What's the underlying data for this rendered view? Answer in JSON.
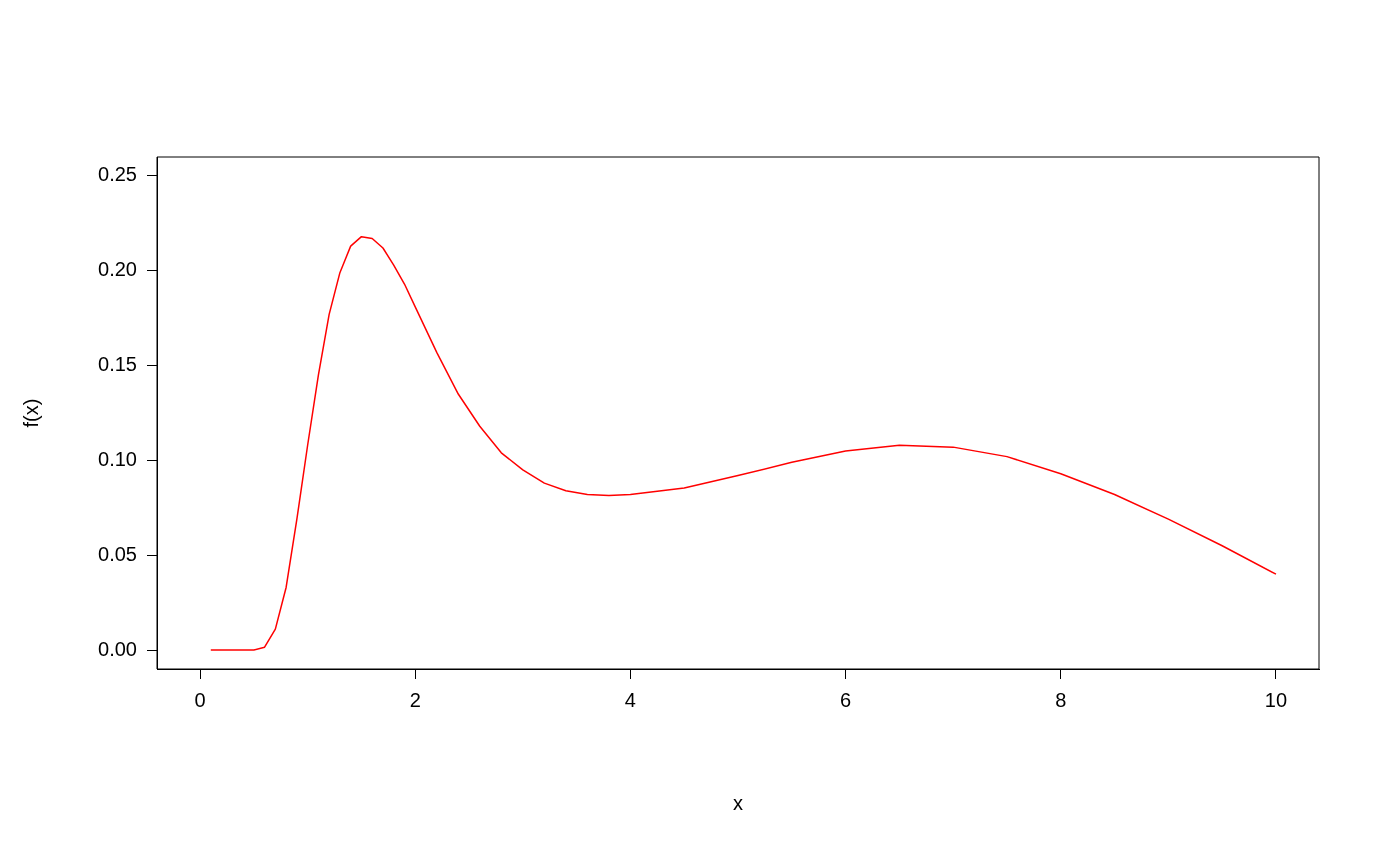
{
  "chart_data": {
    "type": "line",
    "xlabel": "x",
    "ylabel": "f(x)",
    "xlim": [
      -0.4,
      10.4
    ],
    "ylim": [
      -0.01,
      0.26
    ],
    "xticks": [
      0,
      2,
      4,
      6,
      8,
      10
    ],
    "yticks": [
      {
        "value": 0,
        "label": "0.00"
      },
      {
        "value": 0.05,
        "label": "0.05"
      },
      {
        "value": 0.1,
        "label": "0.10"
      },
      {
        "value": 0.15,
        "label": "0.15"
      },
      {
        "value": 0.2,
        "label": "0.20"
      },
      {
        "value": 0.25,
        "label": "0.25"
      }
    ],
    "grid": false,
    "legend": false,
    "marker": "none",
    "line_style": "solid",
    "series": [
      {
        "color": "#ff0000",
        "x": [
          0.1,
          0.2,
          0.3,
          0.4,
          0.5,
          0.6,
          0.7,
          0.8,
          0.9,
          1.0,
          1.1,
          1.2,
          1.3,
          1.4,
          1.5,
          1.6,
          1.7,
          1.8,
          1.9,
          2.0,
          2.2,
          2.4,
          2.6,
          2.8,
          3.0,
          3.2,
          3.4,
          3.6,
          3.8,
          4.0,
          4.5,
          5.0,
          5.5,
          6.0,
          6.5,
          7.0,
          7.5,
          8.0,
          8.5,
          9.0,
          9.5,
          10.0
        ],
        "values": [
          0,
          0,
          0,
          0,
          0,
          0.0015,
          0.011,
          0.033,
          0.069,
          0.108,
          0.145,
          0.177,
          0.199,
          0.213,
          0.218,
          0.217,
          0.212,
          0.203,
          0.193,
          0.181,
          0.157,
          0.135,
          0.118,
          0.104,
          0.095,
          0.088,
          0.084,
          0.082,
          0.0815,
          0.082,
          0.0855,
          0.092,
          0.099,
          0.105,
          0.108,
          0.107,
          0.102,
          0.093,
          0.082,
          0.069,
          0.055,
          0.04
        ]
      }
    ]
  }
}
